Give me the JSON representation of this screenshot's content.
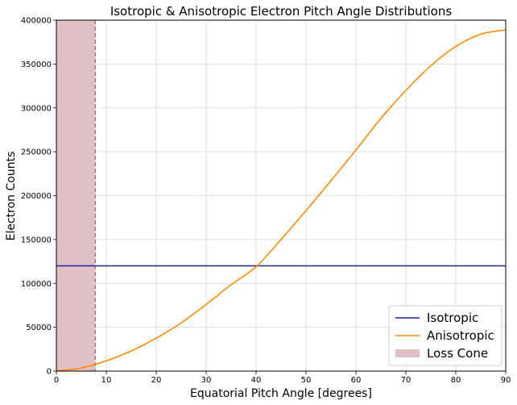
{
  "chart_data": {
    "type": "line",
    "title": "Isotropic & Anisotropic Electron Pitch Angle Distributions",
    "xlabel": "Equatorial Pitch Angle [degrees]",
    "ylabel": "Electron Counts",
    "xlim": [
      0,
      90
    ],
    "ylim": [
      0,
      400000
    ],
    "xticks": [
      0,
      10,
      20,
      30,
      40,
      50,
      60,
      70,
      80,
      90
    ],
    "yticks": [
      0,
      50000,
      100000,
      150000,
      200000,
      250000,
      300000,
      350000,
      400000
    ],
    "grid": true,
    "legend_position": "bottom-right",
    "series": [
      {
        "name": "Isotropic",
        "color": "#1f1fa0",
        "x": [
          0,
          90
        ],
        "y": [
          120000,
          120000
        ]
      },
      {
        "name": "Anisotropic",
        "color": "#ff8c00",
        "x": [
          0,
          5,
          10,
          15,
          20,
          25,
          30,
          35,
          40,
          45,
          50,
          55,
          60,
          65,
          70,
          75,
          80,
          85,
          90
        ],
        "y": [
          0,
          3600,
          11700,
          23000,
          37500,
          55000,
          76000,
          98500,
          119000,
          150000,
          183000,
          217000,
          252000,
          288000,
          320000,
          348000,
          370000,
          384000,
          389000
        ]
      }
    ],
    "shaded_regions": [
      {
        "name": "Loss Cone",
        "color": "#dfbfc3",
        "x_start": 0,
        "x_end": 7.8
      }
    ]
  }
}
